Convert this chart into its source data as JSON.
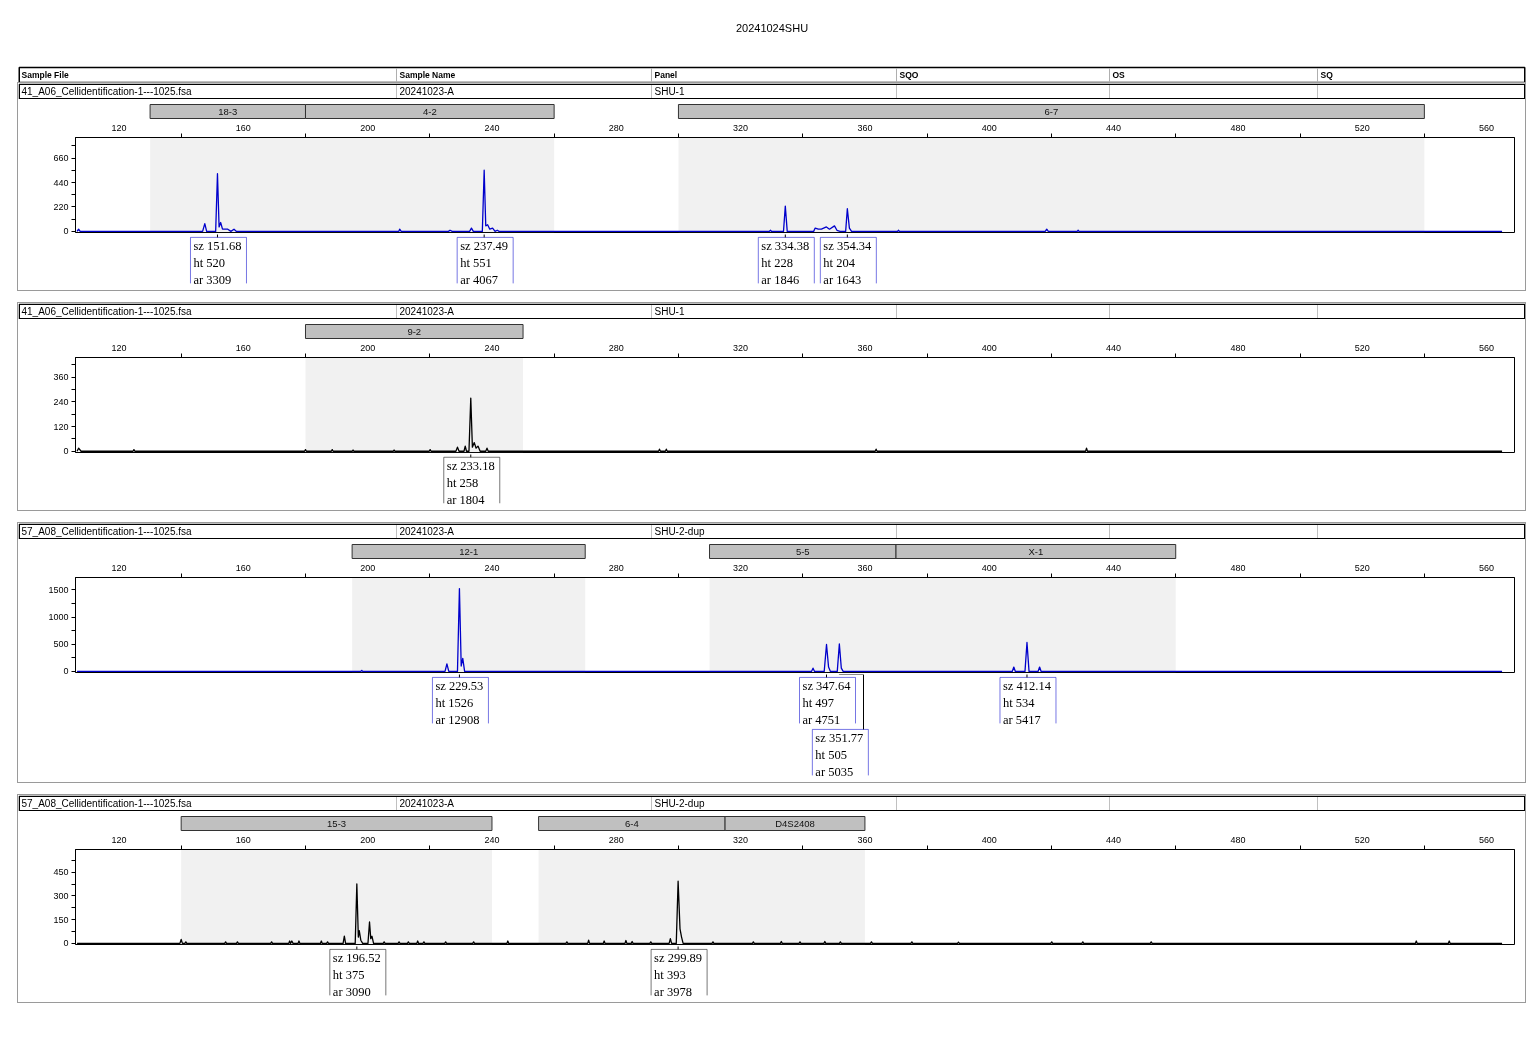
{
  "chart_data": [
    {
      "type": "other",
      "title": "20241024SHU",
      "annotations": [
        "Sample File",
        "Sample Name",
        "Panel",
        "SQO",
        "OS",
        "SQ"
      ]
    },
    {
      "type": "line",
      "annotations": [
        "41_A06_Cellidentification-1---1025.fsa",
        "20241023-A",
        "SHU-1",
        {
          "text": "sz 151.68\nht 520\nar 3309",
          "x": 151.68,
          "y": 0
        },
        {
          "text": "sz 237.49\nht 551\nar 4067",
          "x": 237.49,
          "y": 0
        },
        {
          "text": "sz 334.38\nht 228\nar 1846",
          "x": 334.38,
          "y": 0
        },
        {
          "text": "sz 354.34\nht 204\nar 1643",
          "x": 354.34,
          "y": 0
        }
      ],
      "bands": [
        {
          "axis": "x",
          "from": 130,
          "to": 180,
          "label": "18-3",
          "color": "#c0c0c0"
        },
        {
          "axis": "x",
          "from": 180,
          "to": 260,
          "label": "4-2",
          "color": "#c0c0c0"
        },
        {
          "axis": "x",
          "from": 300,
          "to": 540,
          "label": "6-7",
          "color": "#c0c0c0"
        }
      ],
      "x": [
        106.5,
        107,
        107.5,
        146.9,
        147.6,
        148.2,
        151.1,
        151.68,
        152.2,
        152.7,
        153.3,
        155,
        156,
        157,
        157.8,
        210,
        210.3,
        210.8,
        226,
        226.5,
        227.2,
        232.8,
        233.4,
        234,
        236.9,
        237.49,
        238,
        238.6,
        239.3,
        240.2,
        241,
        241.7,
        242.3,
        329.2,
        329.6,
        330,
        333.8,
        334.38,
        335,
        343.5,
        344,
        345,
        346,
        347.6,
        348.6,
        350.2,
        351,
        352,
        353.8,
        354.34,
        355,
        355.7,
        370.5,
        370.8,
        371.1,
        418,
        418.5,
        419,
        428.3,
        428.6,
        428.9,
        565
      ],
      "series": [
        {
          "color": "#0000cc",
          "values": [
            0,
            20,
            0,
            0,
            70,
            0,
            0,
            520,
            40,
            80,
            20,
            20,
            0,
            20,
            0,
            0,
            20,
            0,
            0,
            10,
            0,
            0,
            30,
            0,
            0,
            551,
            50,
            60,
            20,
            30,
            0,
            10,
            0,
            0,
            10,
            0,
            0,
            228,
            0,
            0,
            30,
            20,
            20,
            40,
            20,
            50,
            10,
            0,
            0,
            204,
            30,
            0,
            0,
            10,
            0,
            0,
            20,
            0,
            0,
            10,
            0,
            0
          ]
        }
      ],
      "xlim": [
        106,
        569
      ],
      "xticks": [
        120,
        {
          "value": 140,
          "label": null
        },
        160,
        {
          "value": 180,
          "label": null
        },
        200,
        {
          "value": 220,
          "label": null
        },
        240,
        {
          "value": 260,
          "label": null
        },
        280,
        {
          "value": 300,
          "label": null
        },
        320,
        {
          "value": 340,
          "label": null
        },
        360,
        {
          "value": 380,
          "label": null
        },
        400,
        {
          "value": 420,
          "label": null
        },
        440,
        {
          "value": 460,
          "label": null
        },
        480,
        {
          "value": 500,
          "label": null
        },
        520,
        {
          "value": 540,
          "label": null
        },
        560
      ],
      "ylim": [
        -10,
        846
      ],
      "yticks": [
        0,
        {
          "value": 110,
          "label": null
        },
        220,
        {
          "value": 330,
          "label": null
        },
        440,
        {
          "value": 550,
          "label": null
        },
        660,
        {
          "value": 770,
          "label": null
        }
      ]
    },
    {
      "type": "line",
      "annotations": [
        "41_A06_Cellidentification-1---1025.fsa",
        "20241023-A",
        "SHU-1",
        {
          "text": "sz 233.18\nht 258\nar 1804",
          "x": 233.18,
          "y": 0
        }
      ],
      "bands": [
        {
          "axis": "x",
          "from": 180,
          "to": 250,
          "label": "9-2",
          "color": "#c0c0c0"
        }
      ],
      "x": [
        106.5,
        107,
        107.8,
        124.5,
        124.8,
        125.1,
        179.7,
        180,
        180.3,
        188.3,
        188.6,
        188.9,
        195,
        195.3,
        195.6,
        208.2,
        208.5,
        208.8,
        219.8,
        220.1,
        220.4,
        228.4,
        228.9,
        229.4,
        231,
        231.4,
        231.8,
        232.6,
        233.18,
        233.7,
        234.3,
        234.9,
        235.5,
        236.2,
        238,
        238.4,
        238.8,
        293.6,
        293.9,
        294.2,
        295.8,
        296.1,
        296.4,
        363.3,
        363.6,
        363.9,
        431,
        431.3,
        431.6,
        565
      ],
      "series": [
        {
          "color": "#000000",
          "values": [
            0,
            15,
            0,
            0,
            8,
            0,
            0,
            8,
            0,
            0,
            8,
            0,
            0,
            6,
            0,
            0,
            6,
            0,
            0,
            8,
            0,
            0,
            20,
            0,
            0,
            25,
            0,
            0,
            258,
            20,
            42,
            15,
            25,
            0,
            0,
            15,
            0,
            0,
            10,
            0,
            0,
            10,
            0,
            0,
            10,
            0,
            0,
            15,
            0,
            0
          ]
        }
      ],
      "xlim": [
        106,
        569
      ],
      "xticks": [
        120,
        {
          "value": 140,
          "label": null
        },
        160,
        {
          "value": 180,
          "label": null
        },
        200,
        {
          "value": 220,
          "label": null
        },
        240,
        {
          "value": 260,
          "label": null
        },
        280,
        {
          "value": 300,
          "label": null
        },
        320,
        {
          "value": 340,
          "label": null
        },
        360,
        {
          "value": 380,
          "label": null
        },
        400,
        {
          "value": 420,
          "label": null
        },
        440,
        {
          "value": 460,
          "label": null
        },
        480,
        {
          "value": 500,
          "label": null
        },
        520,
        {
          "value": 540,
          "label": null
        },
        560
      ],
      "ylim": [
        -6,
        455
      ],
      "yticks": [
        0,
        {
          "value": 60,
          "label": null
        },
        120,
        {
          "value": 180,
          "label": null
        },
        240,
        {
          "value": 300,
          "label": null
        },
        360,
        {
          "value": 420,
          "label": null
        }
      ]
    },
    {
      "type": "line",
      "annotations": [
        "57_A08_Cellidentification-1---1025.fsa",
        "20241023-A",
        "SHU-2-dup",
        {
          "text": "sz 229.53\nht 1526\nar 12908",
          "x": 229.53,
          "y": 0
        },
        {
          "text": "sz 347.64\nht 497\nar 4751",
          "x": 347.64,
          "y": 0
        },
        {
          "text": "sz 351.77\nht 505\nar 5035",
          "x": 351.77,
          "y": 0
        },
        {
          "text": "sz 412.14\nht 534\nar 5417",
          "x": 412.14,
          "y": 0
        }
      ],
      "bands": [
        {
          "axis": "x",
          "from": 195,
          "to": 270,
          "label": "12-1",
          "color": "#c0c0c0"
        },
        {
          "axis": "x",
          "from": 310,
          "to": 370,
          "label": "5-5",
          "color": "#c0c0c0"
        },
        {
          "axis": "x",
          "from": 370,
          "to": 460,
          "label": "X-1",
          "color": "#c0c0c0"
        }
      ],
      "x": [
        106.5,
        197.8,
        198.1,
        198.4,
        224.9,
        225.5,
        226.1,
        228.9,
        229.53,
        230.1,
        230.6,
        231.2,
        342.8,
        343.3,
        343.8,
        346.9,
        347.64,
        348.3,
        348.9,
        351.1,
        351.77,
        352.4,
        353,
        407.4,
        407.9,
        408.4,
        411.5,
        412.14,
        412.8,
        415.7,
        416.2,
        416.7,
        565
      ],
      "series": [
        {
          "color": "#0000cc",
          "values": [
            0,
            0,
            20,
            0,
            0,
            140,
            0,
            0,
            1526,
            100,
            240,
            0,
            0,
            60,
            0,
            0,
            497,
            80,
            0,
            0,
            505,
            60,
            0,
            0,
            80,
            0,
            0,
            534,
            0,
            0,
            80,
            0,
            0
          ]
        }
      ],
      "xlim": [
        106,
        569
      ],
      "xticks": [
        120,
        {
          "value": 140,
          "label": null
        },
        160,
        {
          "value": 180,
          "label": null
        },
        200,
        {
          "value": 220,
          "label": null
        },
        240,
        {
          "value": 260,
          "label": null
        },
        280,
        {
          "value": 300,
          "label": null
        },
        320,
        {
          "value": 340,
          "label": null
        },
        360,
        {
          "value": 380,
          "label": null
        },
        400,
        {
          "value": 420,
          "label": null
        },
        440,
        {
          "value": 460,
          "label": null
        },
        480,
        {
          "value": 500,
          "label": null
        },
        520,
        {
          "value": 540,
          "label": null
        },
        560
      ],
      "ylim": [
        -20,
        1730
      ],
      "yticks": [
        0,
        {
          "value": 250,
          "label": null
        },
        500,
        {
          "value": 750,
          "label": null
        },
        1000,
        {
          "value": 1250,
          "label": null
        },
        1500
      ]
    },
    {
      "type": "line",
      "annotations": [
        "57_A08_Cellidentification-1---1025.fsa",
        "20241023-A",
        "SHU-2-dup",
        {
          "text": "sz 196.52\nht 375\nar 3090",
          "x": 196.52,
          "y": 0
        },
        {
          "text": "sz 299.89\nht 393\nar 3978",
          "x": 299.89,
          "y": 0
        }
      ],
      "bands": [
        {
          "axis": "x",
          "from": 140,
          "to": 240,
          "label": "15-3",
          "color": "#c0c0c0"
        },
        {
          "axis": "x",
          "from": 255,
          "to": 315,
          "label": "6-4",
          "color": "#c0c0c0"
        },
        {
          "axis": "x",
          "from": 315,
          "to": 360,
          "label": "D4S2408",
          "color": "#c0c0c0"
        }
      ],
      "x": [
        106.5,
        139.6,
        140,
        140.4,
        141.2,
        141.5,
        141.8,
        154,
        154.3,
        154.6,
        157.8,
        158.1,
        158.4,
        168.8,
        169.1,
        169.4,
        174.6,
        174.9,
        175.2,
        175.6,
        176,
        177.6,
        177.9,
        178.2,
        184.8,
        185.1,
        185.4,
        186.8,
        187.1,
        187.4,
        192.1,
        192.5,
        192.9,
        196,
        196.52,
        197,
        197.3,
        197.8,
        198.4,
        200.1,
        200.6,
        201,
        201.4,
        201.9,
        205,
        205.3,
        205.6,
        209.8,
        210.1,
        210.4,
        212.8,
        213.1,
        213.4,
        215.8,
        216.1,
        216.4,
        217.8,
        218.1,
        218.4,
        224.8,
        225.1,
        225.4,
        233.8,
        234.1,
        234.4,
        244.8,
        245.1,
        245.4,
        263.8,
        264.1,
        264.4,
        270.8,
        271.1,
        271.4,
        275.8,
        276.1,
        276.4,
        282.8,
        283.1,
        283.4,
        284.8,
        285.1,
        285.4,
        290.8,
        291.1,
        291.4,
        297,
        297.4,
        297.8,
        299.3,
        299.89,
        300.5,
        301,
        301.5,
        310.8,
        311.1,
        311.4,
        323.8,
        324.1,
        324.4,
        332.8,
        333.1,
        333.4,
        338.8,
        339.1,
        339.4,
        346.8,
        347.1,
        347.4,
        351.8,
        352.1,
        352.4,
        361.8,
        362.1,
        362.4,
        374.8,
        375.1,
        375.4,
        389.8,
        390.1,
        390.4,
        419.8,
        420.1,
        420.4,
        429.8,
        430.1,
        430.4,
        451.8,
        452.1,
        452.4,
        537.1,
        537.4,
        537.7,
        547.7,
        548,
        548.3,
        565
      ],
      "series": [
        {
          "color": "#000000",
          "values": [
            0,
            0,
            25,
            0,
            0,
            10,
            0,
            0,
            10,
            0,
            0,
            10,
            0,
            0,
            10,
            0,
            0,
            15,
            0,
            15,
            0,
            0,
            15,
            0,
            0,
            15,
            0,
            0,
            10,
            0,
            0,
            46,
            0,
            0,
            375,
            40,
            80,
            20,
            0,
            0,
            135,
            30,
            45,
            0,
            0,
            10,
            0,
            0,
            10,
            0,
            0,
            10,
            0,
            0,
            15,
            0,
            0,
            10,
            0,
            0,
            10,
            0,
            0,
            10,
            0,
            0,
            15,
            0,
            0,
            10,
            0,
            0,
            20,
            0,
            0,
            15,
            0,
            0,
            18,
            0,
            0,
            12,
            0,
            0,
            10,
            0,
            0,
            30,
            0,
            0,
            393,
            92,
            40,
            0,
            0,
            10,
            0,
            0,
            10,
            0,
            0,
            12,
            0,
            0,
            10,
            0,
            0,
            12,
            0,
            0,
            10,
            0,
            0,
            10,
            0,
            0,
            10,
            0,
            0,
            8,
            0,
            0,
            10,
            0,
            0,
            10,
            0,
            0,
            10,
            0,
            0,
            15,
            0,
            0,
            15,
            0,
            0
          ]
        }
      ],
      "xlim": [
        106,
        569
      ],
      "xticks": [
        120,
        {
          "value": 140,
          "label": null
        },
        160,
        {
          "value": 180,
          "label": null
        },
        200,
        {
          "value": 220,
          "label": null
        },
        240,
        {
          "value": 260,
          "label": null
        },
        280,
        {
          "value": 300,
          "label": null
        },
        320,
        {
          "value": 340,
          "label": null
        },
        360,
        {
          "value": 380,
          "label": null
        },
        400,
        {
          "value": 420,
          "label": null
        },
        440,
        {
          "value": 460,
          "label": null
        },
        480,
        {
          "value": 500,
          "label": null
        },
        520,
        {
          "value": 540,
          "label": null
        },
        560
      ],
      "ylim": [
        -7,
        593
      ],
      "yticks": [
        0,
        {
          "value": 75,
          "label": null
        },
        150,
        {
          "value": 225,
          "label": null
        },
        300,
        {
          "value": 375,
          "label": null
        },
        450,
        {
          "value": 525,
          "label": null
        }
      ]
    }
  ]
}
